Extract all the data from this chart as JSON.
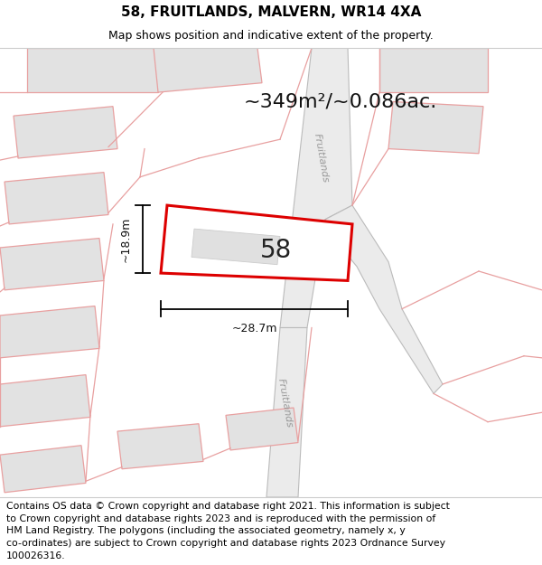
{
  "title": "58, FRUITLANDS, MALVERN, WR14 4XA",
  "subtitle": "Map shows position and indicative extent of the property.",
  "area_text": "~349m²/~0.086ac.",
  "property_number": "58",
  "width_label": "~28.7m",
  "height_label": "~18.9m",
  "footer_text": "Contains OS data © Crown copyright and database right 2021. This information is subject\nto Crown copyright and database rights 2023 and is reproduced with the permission of\nHM Land Registry. The polygons (including the associated geometry, namely x, y\nco-ordinates) are subject to Crown copyright and database rights 2023 Ordnance Survey\n100026316.",
  "map_bg": "#ffffff",
  "road_fill": "#e8e8e8",
  "road_border": "#aaaaaa",
  "property_edge_color": "#dd0000",
  "building_fill": "#e0e0e0",
  "building_edge": "#e8a0a0",
  "street_label": "Fruitlands",
  "title_fontsize": 11,
  "subtitle_fontsize": 9,
  "area_fontsize": 16,
  "footer_fontsize": 7.8
}
